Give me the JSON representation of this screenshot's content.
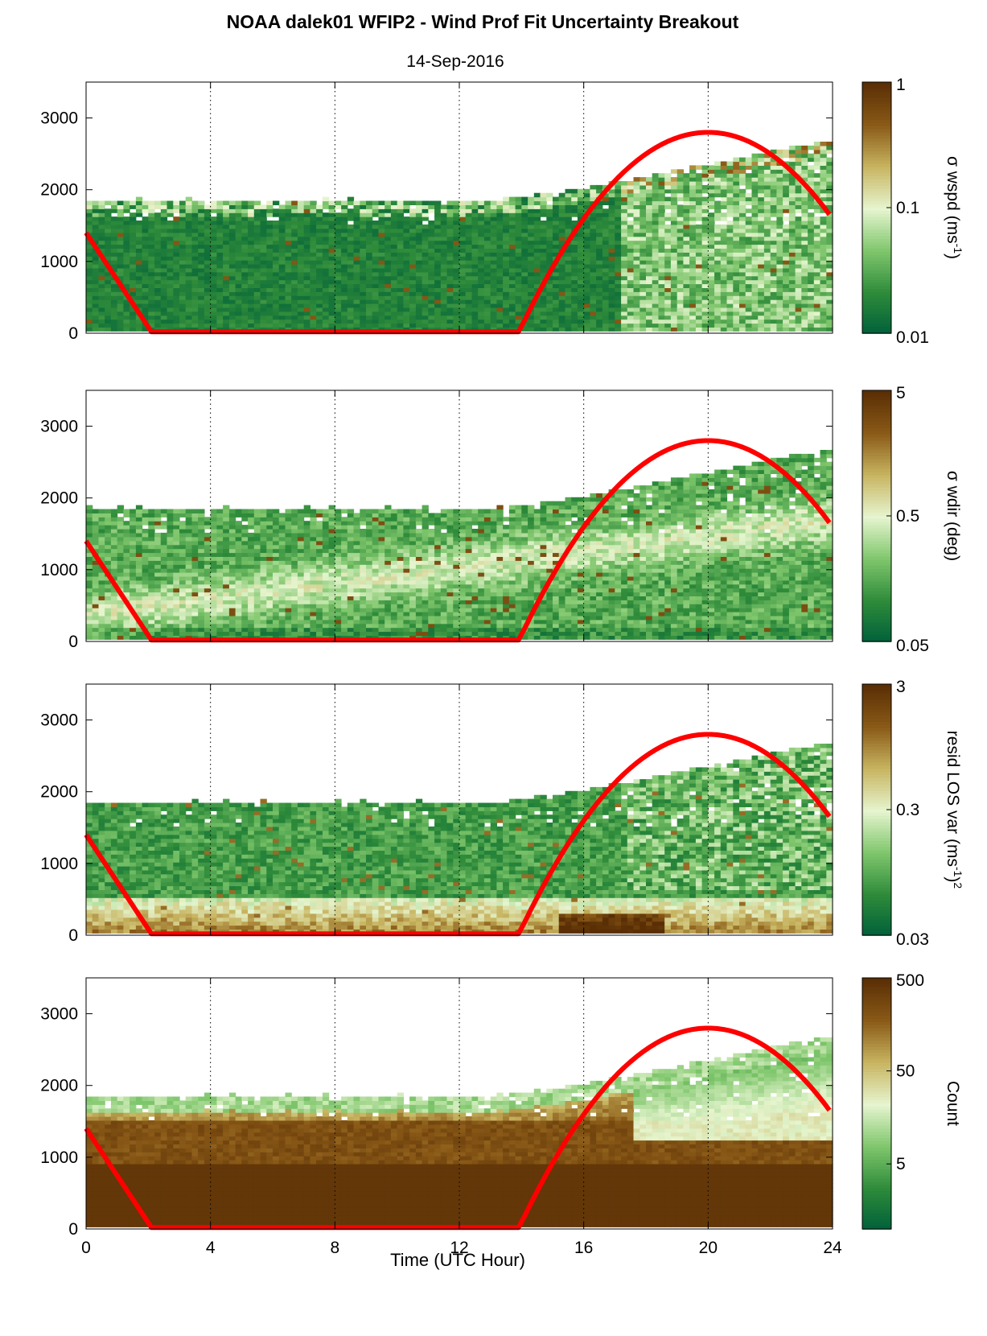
{
  "chart_data": {
    "title": "NOAA dalek01 WFIP2 - Wind Prof Fit Uncertainty Breakout",
    "subtitle": "14-Sep-2016",
    "xlabel": "Time (UTC Hour)",
    "xlim": [
      0,
      24
    ],
    "x_ticks": [
      0,
      4,
      8,
      12,
      16,
      20,
      24
    ],
    "x_tick_labels": [
      "0",
      "4",
      "8",
      "12",
      "16",
      "20",
      "24"
    ],
    "grid": "vertical dotted lines at 4, 8, 12, 16, 20",
    "panels": [
      {
        "type": "heatmap",
        "ylim": [
          0,
          3500
        ],
        "y_ticks": [
          0,
          1000,
          2000,
          3000
        ],
        "y_tick_labels": [
          "0",
          "1000",
          "2000",
          "3000"
        ],
        "colorbar": {
          "label": "σ wspd (ms-1)",
          "label_main": "σ wspd (ms",
          "label_sup": "-1",
          "label_end": ")",
          "scale": "log",
          "range": [
            0.01,
            1
          ],
          "ticks": [
            0.01,
            0.1,
            1
          ],
          "tick_labels": [
            "0.01",
            "0.1",
            "1"
          ]
        }
      },
      {
        "type": "heatmap",
        "ylim": [
          0,
          3500
        ],
        "y_ticks": [
          0,
          1000,
          2000,
          3000
        ],
        "y_tick_labels": [
          "0",
          "1000",
          "2000",
          "3000"
        ],
        "colorbar": {
          "label": "σ wdir (deg)",
          "label_main": "σ wdir (deg)",
          "label_sup": "",
          "label_end": "",
          "scale": "log",
          "range": [
            0.05,
            5
          ],
          "ticks": [
            0.05,
            0.5,
            5
          ],
          "tick_labels": [
            "0.05",
            "0.5",
            "5"
          ]
        }
      },
      {
        "type": "heatmap",
        "ylim": [
          0,
          3500
        ],
        "y_ticks": [
          0,
          1000,
          2000,
          3000
        ],
        "y_tick_labels": [
          "0",
          "1000",
          "2000",
          "3000"
        ],
        "colorbar": {
          "label": "resid LOS var (ms-1)2",
          "label_main": "resid LOS var (ms",
          "label_sup": "-1",
          "label_end": ")",
          "label_sup2": "2",
          "scale": "log",
          "range": [
            0.03,
            3
          ],
          "ticks": [
            0.03,
            0.3,
            3
          ],
          "tick_labels": [
            "0.03",
            "0.3",
            "3"
          ]
        }
      },
      {
        "type": "heatmap",
        "ylim": [
          0,
          3500
        ],
        "y_ticks": [
          0,
          1000,
          2000,
          3000
        ],
        "y_tick_labels": [
          "0",
          "1000",
          "2000",
          "3000"
        ],
        "colorbar": {
          "label": "Count",
          "label_main": "Count",
          "label_sup": "",
          "label_end": "",
          "scale": "log",
          "range": [
            1,
            500
          ],
          "ticks": [
            5,
            50,
            500
          ],
          "tick_labels": [
            "5",
            "50",
            "500"
          ]
        }
      }
    ],
    "overlay_line": {
      "color": "#ff0000",
      "points": [
        [
          0,
          1400
        ],
        [
          2.1,
          20
        ],
        [
          13.8,
          20
        ],
        [
          16,
          1500
        ],
        [
          18,
          2450
        ],
        [
          20,
          2800
        ],
        [
          22,
          2450
        ],
        [
          23.9,
          1550
        ]
      ]
    },
    "colormap": [
      "#00603a",
      "#2e8b3a",
      "#7fc66c",
      "#e6f5cf",
      "#c8b561",
      "#8a5a17",
      "#5a2f05"
    ]
  }
}
